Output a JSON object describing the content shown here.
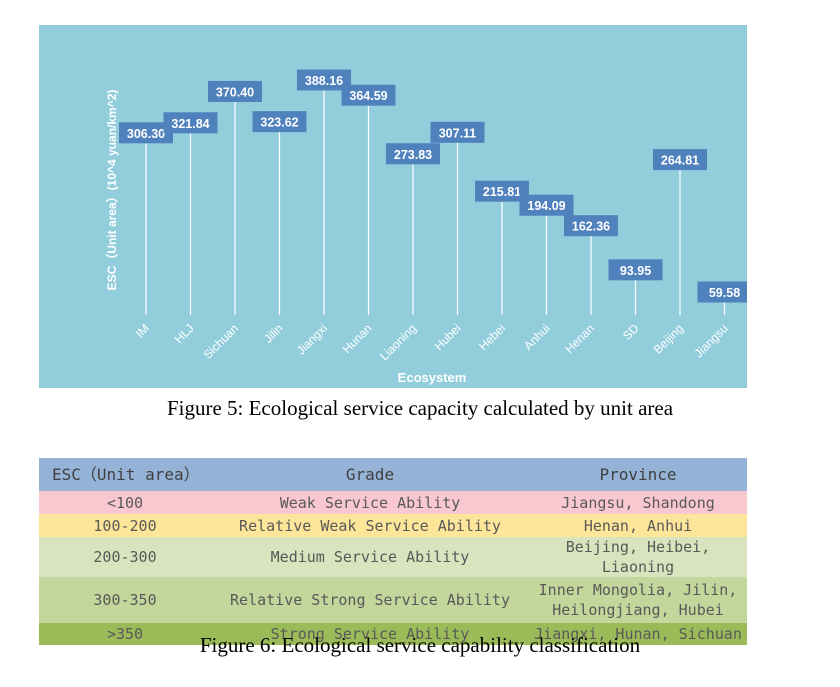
{
  "figure5": {
    "caption": "Figure 5: Ecological service capacity calculated by unit area",
    "chart_data": {
      "type": "lollipop",
      "title": "",
      "xlabel": "Ecosystem",
      "ylabel": "ESC（Unit area）(10^4 yuan/km^2)",
      "categories": [
        "IM",
        "HLJ",
        "Sichuan",
        "Jilin",
        "Jiangxi",
        "Hunan",
        "Liaoning",
        "Hubei",
        "Hebei",
        "Anhui",
        "Henan",
        "SD",
        "Beijing",
        "Jiangsu"
      ],
      "values": [
        306.3,
        321.84,
        370.4,
        323.62,
        388.16,
        364.59,
        273.83,
        307.11,
        215.81,
        194.09,
        162.36,
        93.95,
        264.81,
        59.58
      ],
      "value_labels": [
        "306.30",
        "321.84",
        "370.40",
        "323.62",
        "388.16",
        "364.59",
        "273.83",
        "307.11",
        "215.81",
        "194.09",
        "162.36",
        "93.95",
        "264.81",
        "59.58"
      ],
      "colors": {
        "background": "#92cddc",
        "label_box": "#4f81bd",
        "stem": "#ffffff",
        "axis_text": "#ffffff"
      }
    }
  },
  "figure6": {
    "caption": "Figure 6: Ecological service capability classification",
    "headers": [
      "ESC（Unit area）",
      "Grade",
      "Province"
    ],
    "rows": [
      {
        "esc": "<100",
        "grade": "Weak Service Ability",
        "province": [
          "Jiangsu, Shandong"
        ],
        "color": "#f9c7cf"
      },
      {
        "esc": "100-200",
        "grade": "Relative Weak Service Ability",
        "province": [
          "Henan, Anhui"
        ],
        "color": "#fde69a"
      },
      {
        "esc": "200-300",
        "grade": "Medium Service Ability",
        "province": [
          "Beijing, Heibei, Liaoning"
        ],
        "color": "#d7e4bd"
      },
      {
        "esc": "300-350",
        "grade": "Relative Strong Service Ability",
        "province": [
          "Inner Mongolia, Jilin,",
          "Heilongjiang, Hubei"
        ],
        "color": "#c3d69b"
      },
      {
        "esc": ">350",
        "grade": "Strong Service Ability",
        "province": [
          "Jiangxi, Hunan, Sichuan"
        ],
        "color": "#9bbb59"
      }
    ]
  }
}
